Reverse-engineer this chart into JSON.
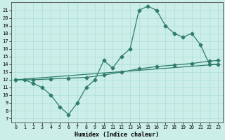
{
  "line1_x": [
    0,
    1,
    2,
    3,
    4,
    5,
    6,
    7,
    8,
    9,
    10,
    11,
    12,
    13,
    14,
    15,
    16,
    17,
    18,
    19,
    20,
    21,
    22,
    23
  ],
  "line1_y": [
    12,
    12,
    11.5,
    11,
    10,
    8.5,
    7.5,
    9,
    11,
    12,
    14.5,
    13.5,
    15,
    16,
    21,
    21.5,
    21,
    19,
    18,
    17.5,
    18,
    16.5,
    14,
    14
  ],
  "line2_x": [
    0,
    2,
    4,
    6,
    8,
    10,
    12,
    14,
    16,
    18,
    20,
    22,
    23
  ],
  "line2_y": [
    12,
    12,
    12.1,
    12.2,
    12.3,
    12.6,
    13.0,
    13.4,
    13.7,
    13.9,
    14.1,
    14.4,
    14.5
  ],
  "line3_x": [
    0,
    23
  ],
  "line3_y": [
    12,
    14
  ],
  "line_color": "#2d7d6b",
  "bg_color": "#cceee8",
  "grid_color": "#aaddd6",
  "xlabel": "Humidex (Indice chaleur)",
  "ylabel_ticks": [
    7,
    8,
    9,
    10,
    11,
    12,
    13,
    14,
    15,
    16,
    17,
    18,
    19,
    20,
    21
  ],
  "xlim": [
    -0.5,
    23.5
  ],
  "ylim": [
    6.5,
    22
  ],
  "marker": "D",
  "marker_size": 2.5,
  "linewidth": 0.9
}
